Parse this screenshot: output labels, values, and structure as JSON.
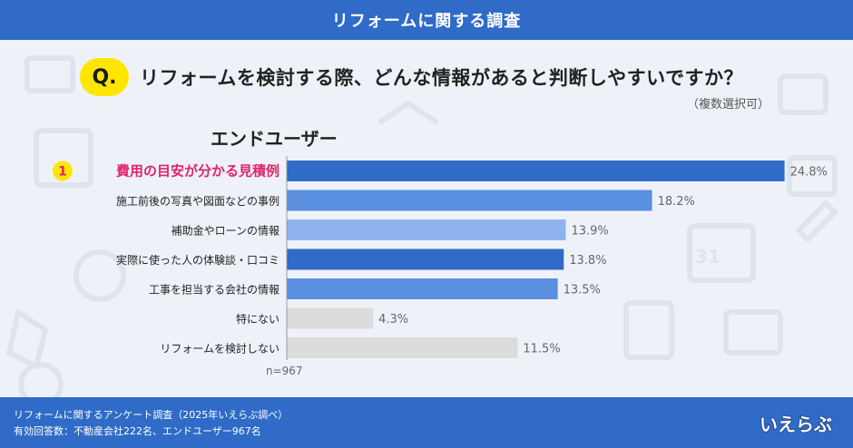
{
  "header": {
    "title": "リフォームに関する調査"
  },
  "question": {
    "badge": "Q.",
    "text": "リフォームを検討する際、どんな情報があると判断しやすいですか？",
    "note": "（複数選択可）"
  },
  "segment_label": "エンドユーザー",
  "sample_size": "n=967",
  "footer": {
    "line1": "リフォームに関するアンケート調査（2025年いえらぶ調べ）",
    "line2": "有効回答数：不動産会社222名、エンドユーザー967名",
    "logo": "いえらぶ"
  },
  "colors": {
    "header_bg": "#2f6bc7",
    "top_bar": "#2f6bc7",
    "mid_bar": "#5b8fe0",
    "light_bar": "#8fb3ee",
    "gray_bar": "#dcdcdc",
    "highlight_text": "#e0246a",
    "rank_badge": "#ffe600"
  },
  "chart_data": {
    "type": "bar",
    "orientation": "horizontal",
    "title": "エンドユーザー",
    "categories": [
      "費用の目安が分かる見積例",
      "施工前後の写真や図面などの事例",
      "補助金やローンの情報",
      "実際に使った人の体験談・口コミ",
      "工事を担当する会社の情報",
      "特にない",
      "リフォームを検討しない"
    ],
    "values": [
      24.8,
      18.2,
      13.9,
      13.8,
      13.5,
      4.3,
      11.5
    ],
    "value_labels": [
      "24.8%",
      "18.2%",
      "13.9%",
      "13.8%",
      "13.5%",
      "4.3%",
      "11.5%"
    ],
    "bar_colors": [
      "#2f6bc7",
      "#5b8fe0",
      "#8fb3ee",
      "#2f6bc7",
      "#5b8fe0",
      "#dcdcdc",
      "#dcdcdc"
    ],
    "highlight": {
      "rank": "1",
      "index": 0
    },
    "xlim": [
      0,
      25
    ],
    "xlabel": "",
    "ylabel": "",
    "n": "n=967"
  }
}
